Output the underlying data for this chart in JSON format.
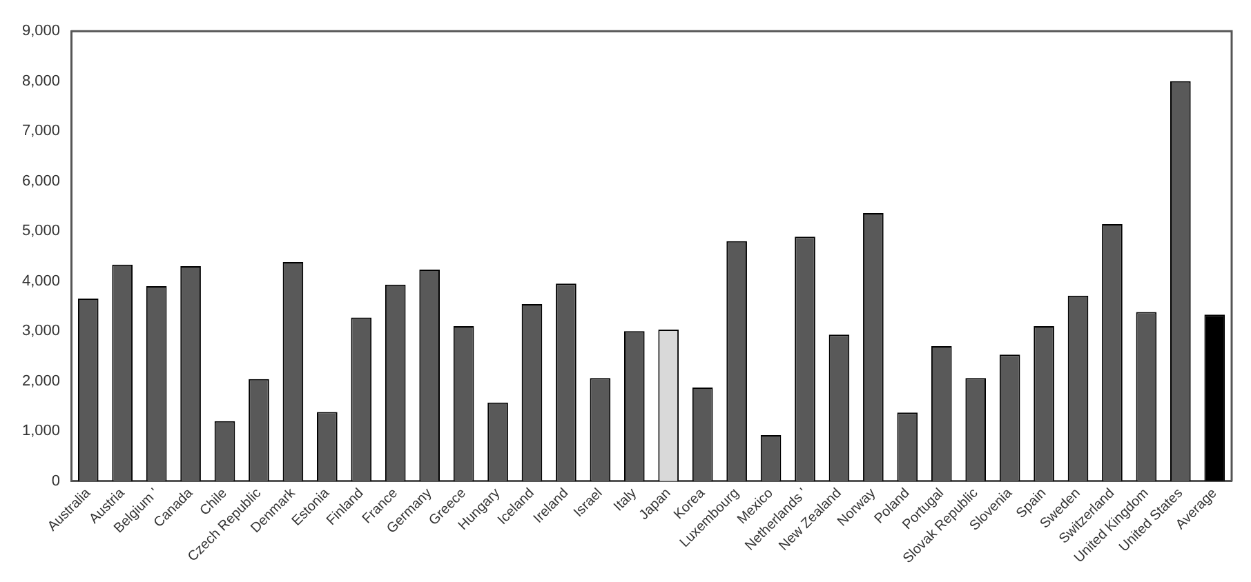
{
  "chart_data": {
    "type": "bar",
    "categories": [
      "Australia",
      "Austria",
      "Belgium '",
      "Canada",
      "Chile",
      "Czech Republic",
      "Denmark",
      "Estonia",
      "Finland",
      "France",
      "Germany",
      "Greece",
      "Hungary",
      "Iceland",
      "Ireland",
      "Israel",
      "Italy",
      "Japan",
      "Korea",
      "Luxembourg",
      "Mexico",
      "Netherlands '",
      "New Zealand",
      "Norway",
      "Poland",
      "Portugal",
      "Slovak Republic",
      "Slovenia",
      "Spain",
      "Sweden",
      "Switzerland",
      "United Kingdom",
      "United States",
      "Average"
    ],
    "values": [
      3650,
      4330,
      3900,
      4300,
      1200,
      2040,
      4380,
      1380,
      3270,
      3930,
      4230,
      3100,
      1570,
      3540,
      3950,
      2060,
      3000,
      3030,
      1870,
      4800,
      920,
      4890,
      2930,
      5360,
      1370,
      2700,
      2060,
      2530,
      3100,
      3710,
      5140,
      3380,
      8000,
      3330
    ],
    "colors": [
      "#595959",
      "#595959",
      "#595959",
      "#595959",
      "#595959",
      "#595959",
      "#595959",
      "#595959",
      "#595959",
      "#595959",
      "#595959",
      "#595959",
      "#595959",
      "#595959",
      "#595959",
      "#595959",
      "#595959",
      "#d9d9d9",
      "#595959",
      "#595959",
      "#595959",
      "#595959",
      "#595959",
      "#595959",
      "#595959",
      "#595959",
      "#595959",
      "#595959",
      "#595959",
      "#595959",
      "#595959",
      "#595959",
      "#595959",
      "#000000"
    ],
    "ylim": [
      0,
      9000
    ],
    "yticks": [
      0,
      {
        "value": 1000,
        "label": "1,000"
      },
      {
        "value": 2000,
        "label": "2,000"
      },
      {
        "value": 3000,
        "label": "3,000"
      },
      {
        "value": 4000,
        "label": "4,000"
      },
      {
        "value": 5000,
        "label": "5,000"
      },
      {
        "value": 6000,
        "label": "6,000"
      },
      {
        "value": 7000,
        "label": "7,000"
      },
      {
        "value": 8000,
        "label": "8,000"
      },
      {
        "value": 9000,
        "label": "9,000"
      }
    ],
    "grid": false,
    "legend": false
  }
}
